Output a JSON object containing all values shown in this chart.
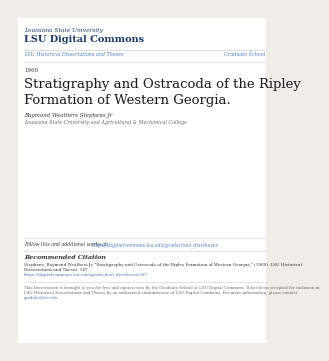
{
  "bg_color": "#f0ede8",
  "content_bg": "#ffffff",
  "header_institution": "Louisiana State University",
  "header_repo": "LSU Digital Commons",
  "nav_left": "LSU Historical Dissertations and Theses",
  "nav_right": "Graduate School",
  "year": "1960",
  "title_line1": "Stratigraphy and Ostracoda of the Ripley",
  "title_line2": "Formation of Western Georgia.",
  "author": "Raymond Weathers Stephens Jr",
  "affiliation": "Louisiana State University and Agricultural & Mechanical College",
  "follow_text": "Follow this and additional works at: ",
  "follow_link": "https://digitalcommons.lsu.edu/gradschool_disstheses",
  "rec_citation_header": "Recommended Citation",
  "rec_citation_body1": "Stephens, Raymond Weathers Jr, \"Stratigraphy and Ostracoda of the Ripley Formation of Western Georgia,\" (1960). LSU Historical",
  "rec_citation_body2": "Dissertations and Theses. 587.",
  "rec_citation_link": "https://digitalcommons.lsu.edu/gradschool_disstheses/587",
  "footer_text1": "This Dissertation is brought to you for free and open access by the Graduate School at LSU Digital Commons. It has been accepted for inclusion in",
  "footer_text2": "LSU Historical Dissertations and Theses by an authorized administrator of LSU Digital Commons. For more information, please contact",
  "footer_text3": "gradokt@lsu.edu.",
  "header_color": "#1a3a6b",
  "link_color": "#4a7abf",
  "nav_color": "#4a7abf",
  "title_color": "#1a1a1a",
  "text_color": "#333333",
  "light_text_color": "#666666",
  "line_color": "#cccccc"
}
